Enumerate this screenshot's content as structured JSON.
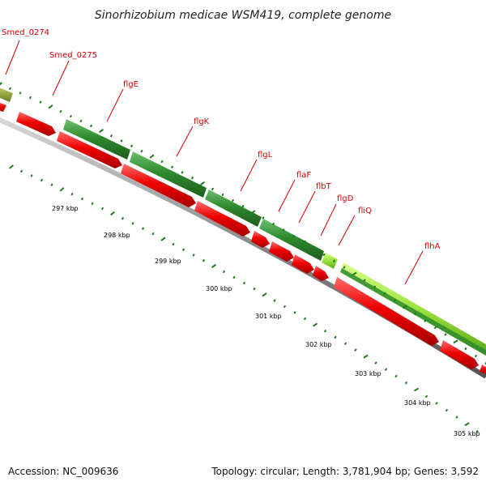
{
  "title": "Sinorhizobium medicae WSM419, complete genome",
  "footer": {
    "accession": "Accession: NC_009636",
    "summary": "Topology: circular; Length: 3,781,904 bp; Genes: 3,592"
  },
  "colors": {
    "forward_gene": "#2e8b2e",
    "forward_gene_highlight": "#9be23c",
    "reverse_gene": "#e60000",
    "backbone": "#777777",
    "tick": "#1e7a1e",
    "label": "#d40000"
  },
  "gene_labels": [
    "Smed_0274",
    "Smed_0275",
    "flgE",
    "flgK",
    "flgL",
    "flaF",
    "flbT",
    "flgD",
    "fliQ",
    "flhA"
  ],
  "kbp_labels": [
    "297 kbp",
    "298 kbp",
    "299 kbp",
    "300 kbp",
    "301 kbp",
    "302 kbp",
    "303 kbp",
    "304 kbp",
    "305 kbp"
  ]
}
